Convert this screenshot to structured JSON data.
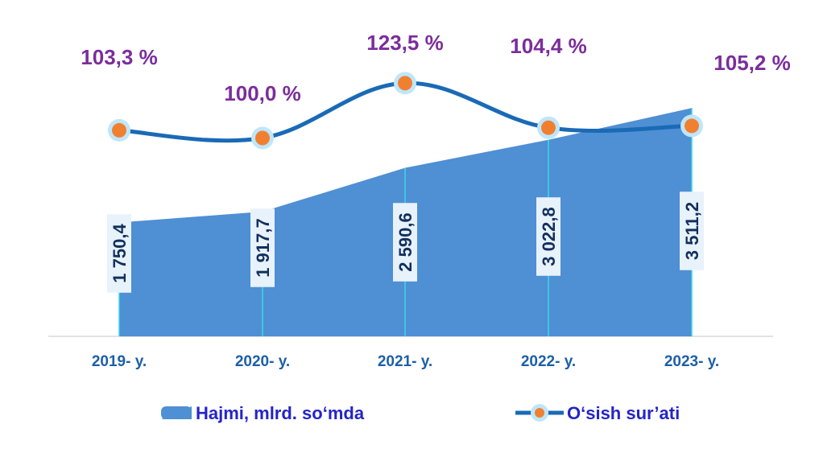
{
  "chart_data": {
    "type": "area+line",
    "categories": [
      "2019- y.",
      "2020- y.",
      "2021- y.",
      "2022- y.",
      "2023- y."
    ],
    "series": [
      {
        "name": "Hajmi, mlrd. so‘mda",
        "type": "area",
        "values": [
          1750.4,
          1917.7,
          2590.6,
          3022.8,
          3511.2
        ],
        "labels": [
          "1 750,4",
          "1 917,7",
          "2 590,6",
          "3 022,8",
          "3 511,2"
        ]
      },
      {
        "name": "O‘sish sur’ati",
        "type": "line",
        "values": [
          103.3,
          100.0,
          123.5,
          104.4,
          105.2
        ],
        "labels": [
          "103,3 %",
          "100,0 %",
          "123,5 %",
          "104,4 %",
          "105,2 %"
        ]
      }
    ],
    "legend_position": "bottom",
    "grid": false,
    "colors": {
      "area": "#4f8fd4",
      "area_divider": "#38d8e6",
      "line": "#1a6ab6",
      "marker_fill": "#f08030",
      "marker_ring": "#bfe6fb",
      "percent_label": "#7b2d9c",
      "volume_label": "#12305e",
      "volume_label_bg": "#e8f2fb",
      "tick_label": "#1c5fa8",
      "legend_text": "#2424c8",
      "axis": "#d9d9d9"
    }
  }
}
